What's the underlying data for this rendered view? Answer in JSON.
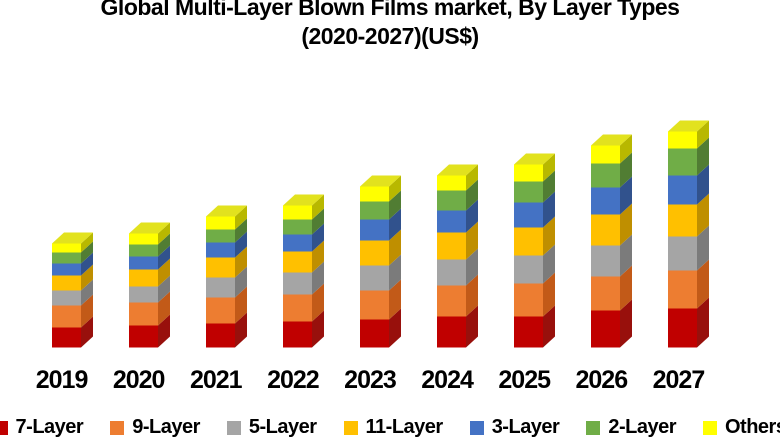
{
  "title": {
    "line1": "Global Multi-Layer Blown Films market, By Layer Types",
    "line2": "(2020-2027)(US$)"
  },
  "chart_data": {
    "type": "bar",
    "variant": "stacked-3d-column",
    "title": "Global Multi-Layer Blown Films market, By Layer Types (2020-2027)(US$)",
    "categories": [
      "2019",
      "2020",
      "2021",
      "2022",
      "2023",
      "2024",
      "2025",
      "2026",
      "2027"
    ],
    "series": [
      {
        "name": "7-Layer",
        "color": "#C00000",
        "side_color": "#98100C",
        "values": [
          20,
          22,
          24,
          26,
          28,
          31,
          31,
          37,
          39
        ]
      },
      {
        "name": "9-Layer",
        "color": "#ED7D31",
        "side_color": "#C25A18",
        "values": [
          22,
          23,
          26,
          27,
          29,
          31,
          33,
          34,
          38
        ]
      },
      {
        "name": "5-Layer",
        "color": "#A5A5A5",
        "side_color": "#7B7B7B",
        "values": [
          15,
          16,
          20,
          22,
          25,
          26,
          28,
          31,
          34
        ]
      },
      {
        "name": "11-Layer",
        "color": "#FFC000",
        "side_color": "#BF8F00",
        "values": [
          15,
          17,
          20,
          21,
          25,
          27,
          28,
          31,
          32
        ]
      },
      {
        "name": "3-Layer",
        "color": "#4472C4",
        "side_color": "#31528D",
        "values": [
          12,
          13,
          15,
          17,
          21,
          22,
          25,
          27,
          29
        ]
      },
      {
        "name": "2-Layer",
        "color": "#70AD47",
        "side_color": "#517D33",
        "values": [
          11,
          12,
          13,
          15,
          18,
          20,
          21,
          24,
          27
        ]
      },
      {
        "name": "Others",
        "color": "#FFFF00",
        "side_color": "#B8B800",
        "top_color": "#E2E21E",
        "values": [
          9,
          11,
          13,
          14,
          15,
          15,
          17,
          18,
          17
        ]
      }
    ],
    "stack_order": "bottom-to-top",
    "value_units": "relative height units (no value axis shown)",
    "xlabel": "",
    "ylabel": "",
    "grid": false,
    "value_axis_visible": false,
    "legend_position": "bottom"
  }
}
